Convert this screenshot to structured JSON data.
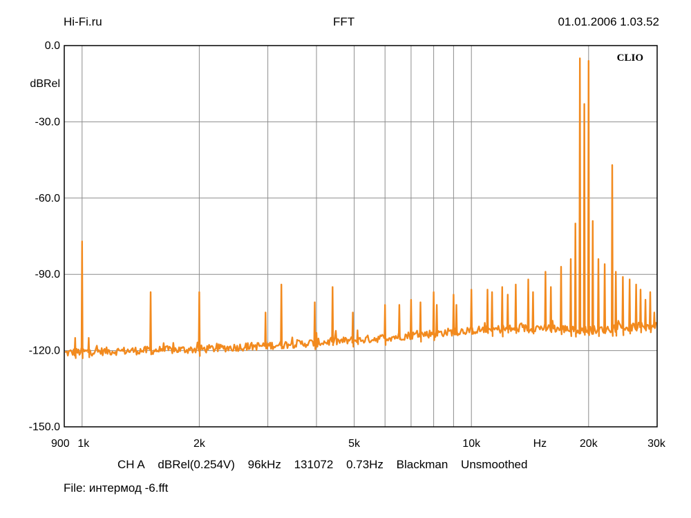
{
  "header": {
    "left": "Hi-Fi.ru",
    "center": "FFT",
    "right": "01.01.2006 1.03.52"
  },
  "footer": {
    "channel": "CH A",
    "unit": "dBRel(0.254V)",
    "rate": "96kHz",
    "points": "131072",
    "resolution": "0.73Hz",
    "window": "Blackman",
    "smoothing": "Unsmoothed",
    "file": "File: интермод -6.fft"
  },
  "colors": {
    "trace": "#F28A1E",
    "grid": "#8c8c8c",
    "frame": "#000000"
  },
  "chart_data": {
    "type": "line",
    "title": "FFT",
    "xlabel": "Hz",
    "ylabel": "dBRel",
    "xscale": "log",
    "xlim": [
      900,
      30000
    ],
    "ylim": [
      -150,
      0
    ],
    "grid": true,
    "brand": "CLIO",
    "ytick_labels": [
      "0.0",
      "-30.0",
      "-60.0",
      "-90.0",
      "-120.0",
      "-150.0"
    ],
    "ytick_values": [
      0,
      -30,
      -60,
      -90,
      -120,
      -150
    ],
    "xtick_labels": [
      {
        "value": 900,
        "label": "900"
      },
      {
        "value": 1000,
        "label": "1k"
      },
      {
        "value": 2000,
        "label": "2k"
      },
      {
        "value": 5000,
        "label": "5k"
      },
      {
        "value": 10000,
        "label": "10k"
      },
      {
        "value": 20000,
        "label": "20k"
      },
      {
        "value": 30000,
        "label": "30k"
      }
    ],
    "noise_floor": [
      [
        900,
        -121
      ],
      [
        1000,
        -120.5
      ],
      [
        2000,
        -119.5
      ],
      [
        3000,
        -118
      ],
      [
        5000,
        -116
      ],
      [
        7000,
        -114
      ],
      [
        10000,
        -112
      ],
      [
        15000,
        -111
      ],
      [
        20000,
        -112
      ],
      [
        30000,
        -110
      ]
    ],
    "peaks": [
      {
        "f": 960,
        "db": -115
      },
      {
        "f": 1000,
        "db": -77
      },
      {
        "f": 1040,
        "db": -115
      },
      {
        "f": 1500,
        "db": -97
      },
      {
        "f": 2000,
        "db": -97
      },
      {
        "f": 2960,
        "db": -105
      },
      {
        "f": 3250,
        "db": -94
      },
      {
        "f": 3960,
        "db": -101
      },
      {
        "f": 4000,
        "db": -113
      },
      {
        "f": 4400,
        "db": -95
      },
      {
        "f": 4960,
        "db": -105
      },
      {
        "f": 5100,
        "db": -112
      },
      {
        "f": 6000,
        "db": -102
      },
      {
        "f": 6530,
        "db": -102
      },
      {
        "f": 7000,
        "db": -100
      },
      {
        "f": 7400,
        "db": -101
      },
      {
        "f": 8000,
        "db": -97
      },
      {
        "f": 8150,
        "db": -102
      },
      {
        "f": 9000,
        "db": -98
      },
      {
        "f": 9150,
        "db": -102
      },
      {
        "f": 10000,
        "db": -96
      },
      {
        "f": 11000,
        "db": -96
      },
      {
        "f": 11300,
        "db": -97
      },
      {
        "f": 12000,
        "db": -95
      },
      {
        "f": 12400,
        "db": -98
      },
      {
        "f": 13000,
        "db": -94
      },
      {
        "f": 14000,
        "db": -92
      },
      {
        "f": 14400,
        "db": -97
      },
      {
        "f": 15500,
        "db": -89
      },
      {
        "f": 16000,
        "db": -95
      },
      {
        "f": 17000,
        "db": -87
      },
      {
        "f": 18000,
        "db": -84
      },
      {
        "f": 18500,
        "db": -70
      },
      {
        "f": 19000,
        "db": -5
      },
      {
        "f": 19500,
        "db": -23
      },
      {
        "f": 20000,
        "db": -6
      },
      {
        "f": 20500,
        "db": -69
      },
      {
        "f": 21200,
        "db": -84
      },
      {
        "f": 22000,
        "db": -86
      },
      {
        "f": 23000,
        "db": -47
      },
      {
        "f": 23500,
        "db": -89
      },
      {
        "f": 24500,
        "db": -91
      },
      {
        "f": 25500,
        "db": -92
      },
      {
        "f": 26500,
        "db": -94
      },
      {
        "f": 27200,
        "db": -96
      },
      {
        "f": 28000,
        "db": -100
      },
      {
        "f": 28800,
        "db": -97
      },
      {
        "f": 29500,
        "db": -105
      }
    ]
  }
}
